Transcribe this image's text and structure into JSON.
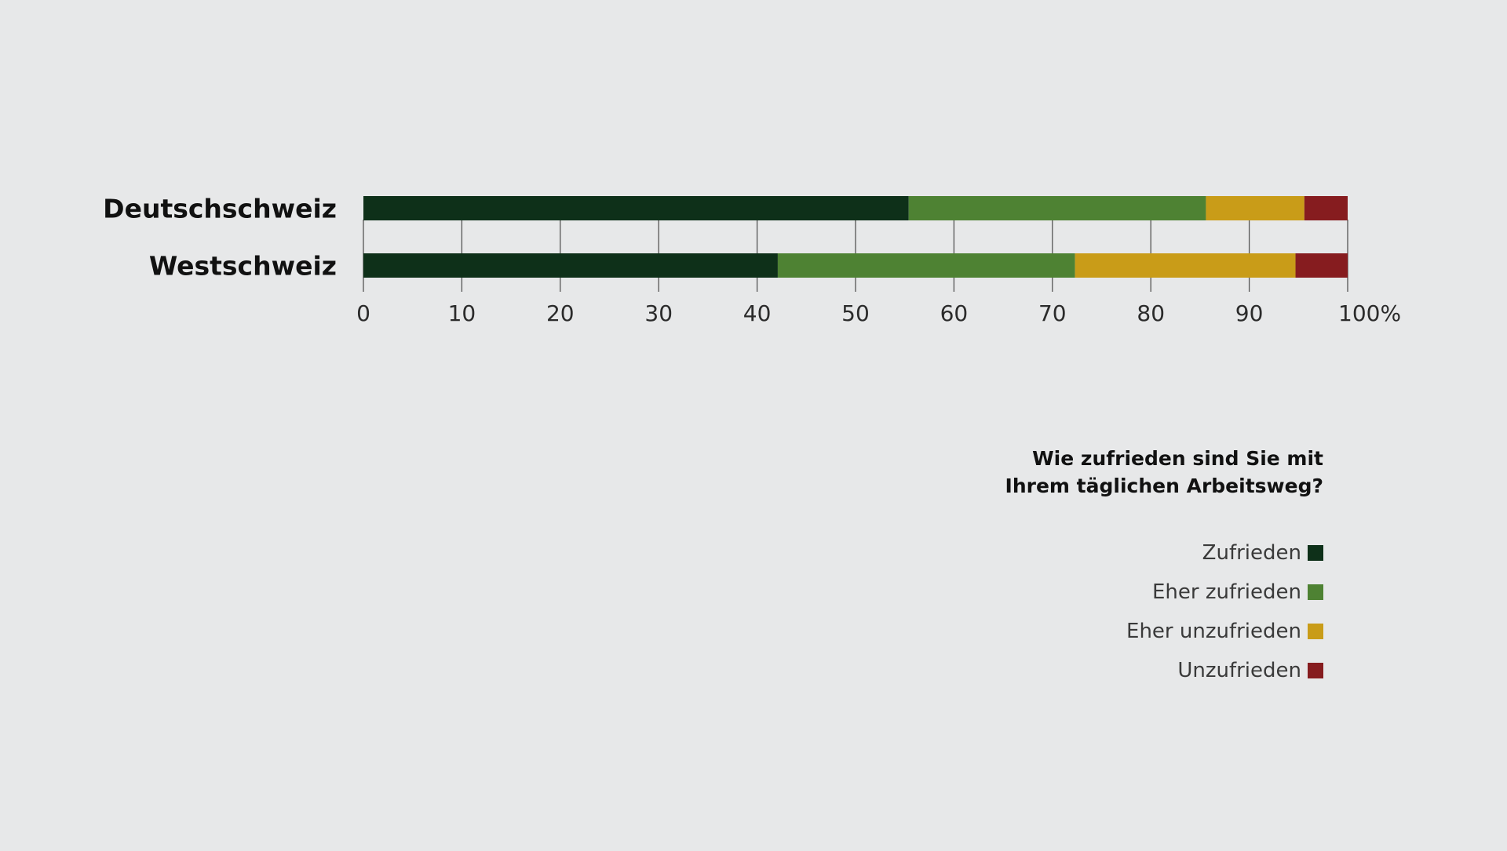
{
  "chart_data": {
    "type": "bar",
    "orientation": "horizontal",
    "stacked": true,
    "categories": [
      "Deutschschweiz",
      "Westschweiz"
    ],
    "series": [
      {
        "name": "Zufrieden",
        "color": "#0e3019",
        "values": [
          55.4,
          42.1
        ]
      },
      {
        "name": "Eher zufrieden",
        "color": "#4e8233",
        "values": [
          30.2,
          30.2
        ]
      },
      {
        "name": "Eher unzufrieden",
        "color": "#c99c18",
        "values": [
          10.0,
          22.4
        ]
      },
      {
        "name": "Unzufrieden",
        "color": "#861c1f",
        "values": [
          4.4,
          5.3
        ]
      }
    ],
    "xlim": [
      0,
      100
    ],
    "xticks": [
      "0",
      "10",
      "20",
      "30",
      "40",
      "50",
      "60",
      "70",
      "80",
      "90",
      "100%"
    ],
    "grid": true,
    "legend_position": "bottom-right",
    "legend_title_lines": [
      "Wie zufrieden sind Sie mit",
      "Ihrem täglichen Arbeitsweg?"
    ]
  }
}
